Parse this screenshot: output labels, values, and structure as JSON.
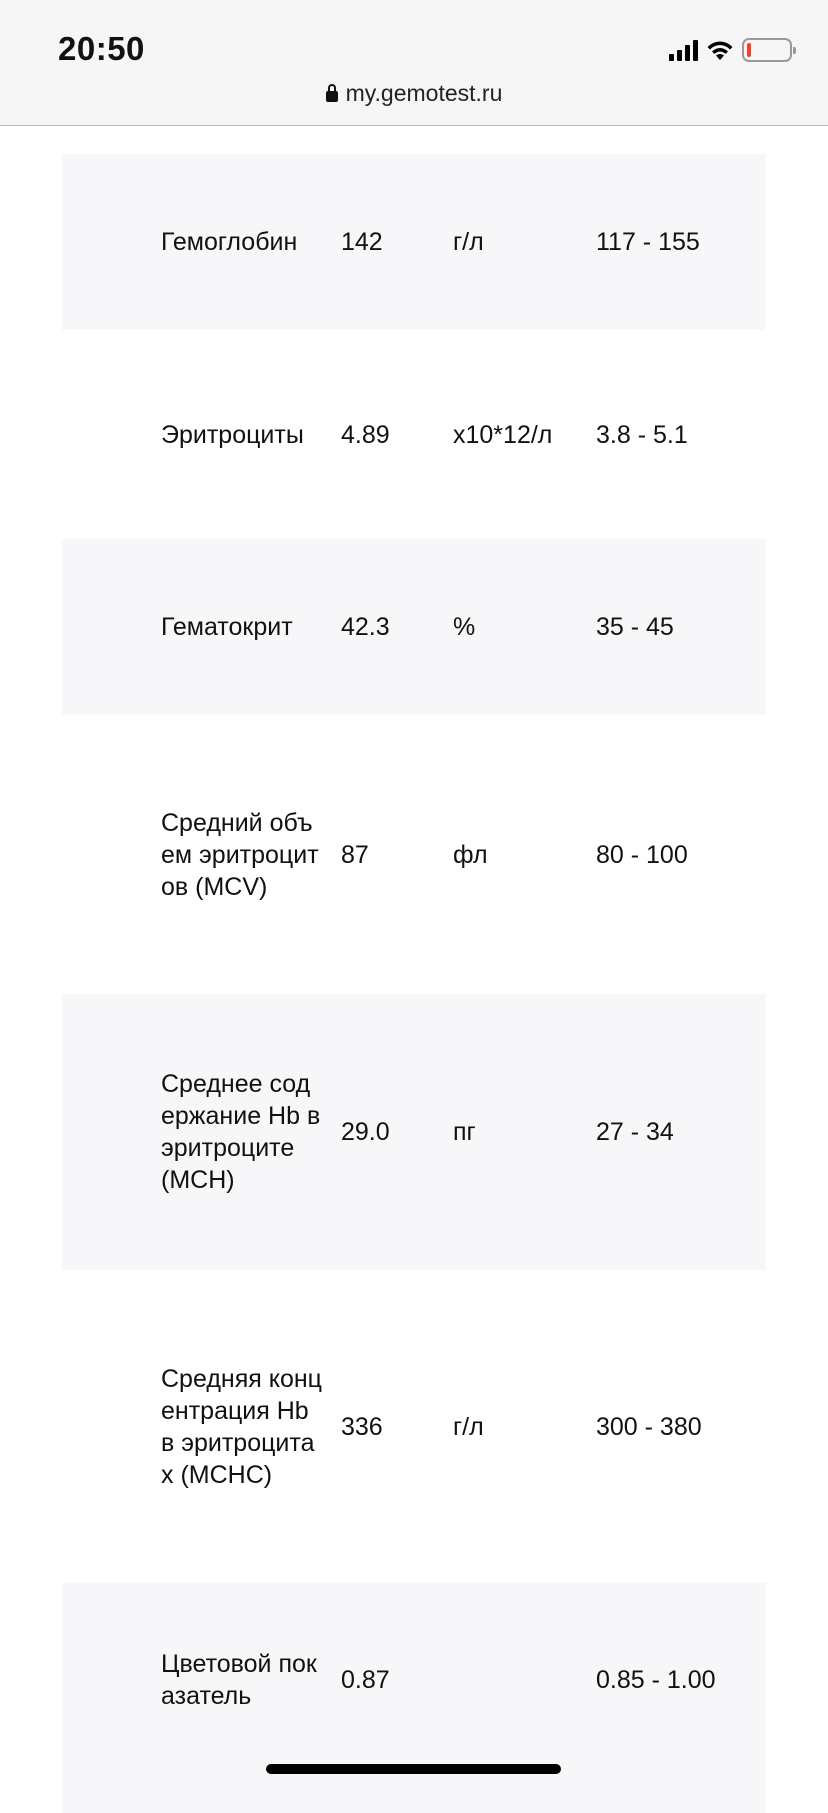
{
  "status_bar": {
    "time": "20:50",
    "icons": [
      "cellular-signal-icon",
      "wifi-icon",
      "battery-low-icon"
    ],
    "battery_color": "#ff3b30"
  },
  "browser": {
    "url": "my.gemotest.ru"
  },
  "results": [
    {
      "name": "Гемоглобин",
      "value": "142",
      "unit": "г/л",
      "reference": "117 - 155"
    },
    {
      "name": "Эритроциты",
      "value": "4.89",
      "unit": "x10*12/л",
      "reference": "3.8 - 5.1"
    },
    {
      "name": "Гематокрит",
      "value": "42.3",
      "unit": "%",
      "reference": "35 - 45"
    },
    {
      "name": "Средний объем эритроцитов (MCV)",
      "value": "87",
      "unit": "фл",
      "reference": "80 - 100"
    },
    {
      "name": "Среднее содержание Hb в эритроците (MCH)",
      "value": "29.0",
      "unit": "пг",
      "reference": "27 - 34"
    },
    {
      "name": "Средняя концентрация Hb в эритроцитах (MCHC)",
      "value": "336",
      "unit": "г/л",
      "reference": "300 - 380"
    },
    {
      "name": "Цветовой показатель",
      "value": "0.87",
      "unit": "",
      "reference": "0.85 - 1.00"
    }
  ]
}
